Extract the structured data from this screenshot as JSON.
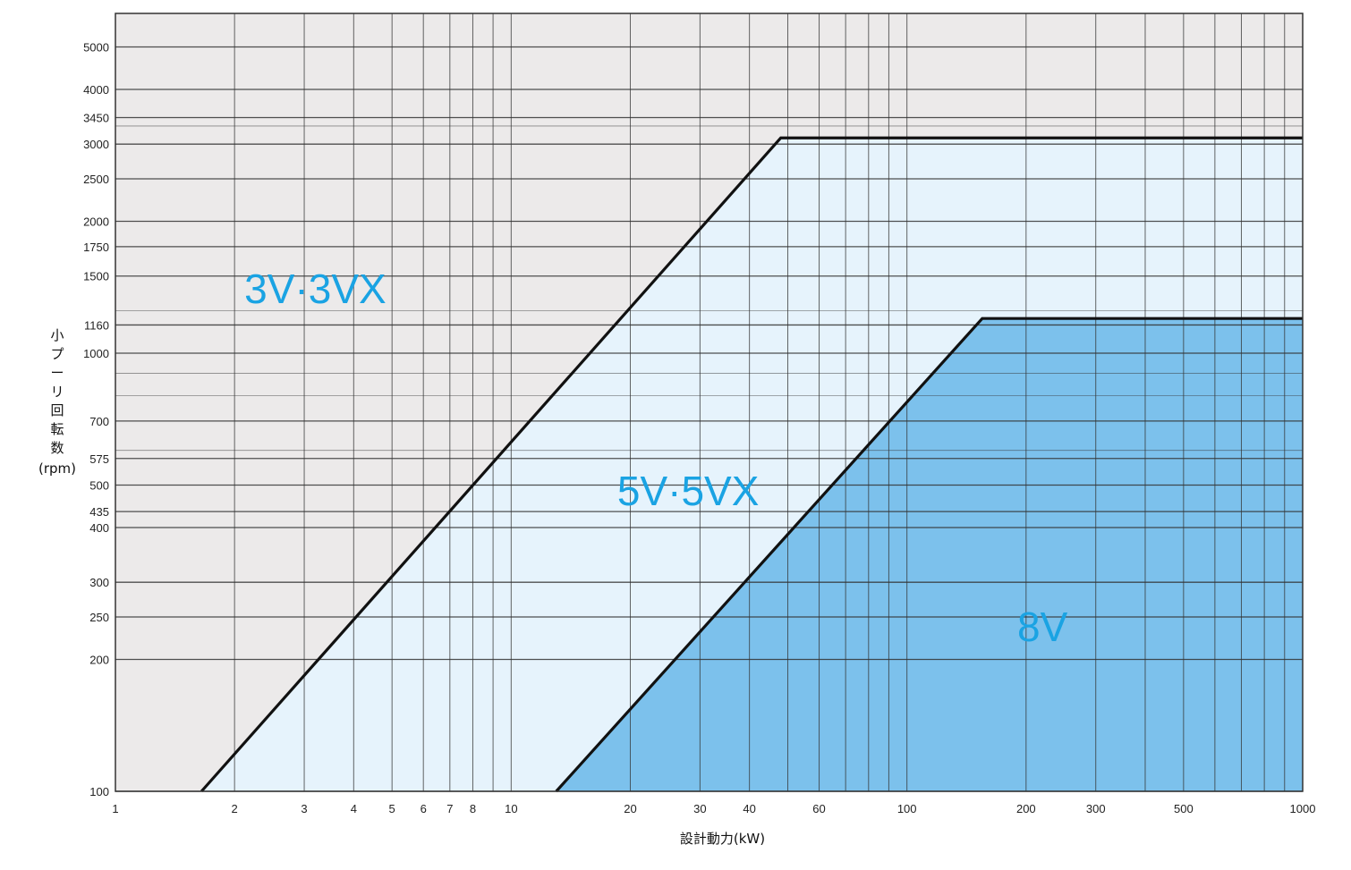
{
  "chart_data": {
    "type": "area",
    "xlabel": "設計動力(kW)",
    "ylabel_chars": [
      "小",
      "プ",
      "ー",
      "リ",
      "回",
      "転",
      "数"
    ],
    "ylabel_unit": "(rpm)",
    "x_scale": "log",
    "y_scale": "log",
    "xlim": [
      1,
      1000
    ],
    "ylim": [
      100,
      6000
    ],
    "x_ticks": [
      1,
      2,
      3,
      4,
      5,
      6,
      7,
      8,
      10,
      20,
      30,
      40,
      60,
      100,
      200,
      300,
      500,
      1000
    ],
    "x_tick_labels": [
      "1",
      "2",
      "3",
      "4",
      "5",
      "6",
      "7",
      "8",
      "10",
      "20",
      "30",
      "40",
      "60",
      "100",
      "200",
      "300",
      "500",
      "1000"
    ],
    "y_ticks": [
      100,
      200,
      250,
      300,
      400,
      435,
      500,
      575,
      700,
      1000,
      1160,
      1500,
      1750,
      2000,
      2500,
      3000,
      3450,
      4000,
      5000
    ],
    "y_tick_labels": [
      "100",
      "200",
      "250",
      "300",
      "400",
      "435",
      "500",
      "575",
      "700",
      "1000",
      "1160",
      "1500",
      "1750",
      "2000",
      "2500",
      "3000",
      "3450",
      "4000",
      "5000"
    ],
    "grid": true,
    "boundaries": [
      {
        "name": "3V·3VX / 5V·5VX",
        "points": [
          [
            1.65,
            100
          ],
          [
            48,
            3100
          ],
          [
            1000,
            3100
          ]
        ]
      },
      {
        "name": "5V·5VX / 8V",
        "points": [
          [
            13,
            100
          ],
          [
            155,
            1200
          ],
          [
            1000,
            1200
          ]
        ]
      }
    ],
    "regions": [
      {
        "label": "3V·3VX",
        "color": "#eceaea",
        "text_color": "#1aa3e3",
        "anchor": [
          3.2,
          1300
        ]
      },
      {
        "label": "5V·5VX",
        "color": "#e6f3fc",
        "text_color": "#1aa3e3",
        "anchor": [
          28,
          450
        ]
      },
      {
        "label": "8V",
        "color": "#7cc1ec",
        "text_color": "#1aa3e3",
        "anchor": [
          220,
          220
        ]
      }
    ],
    "line_color": "#111111",
    "grid_color": "#333333"
  }
}
